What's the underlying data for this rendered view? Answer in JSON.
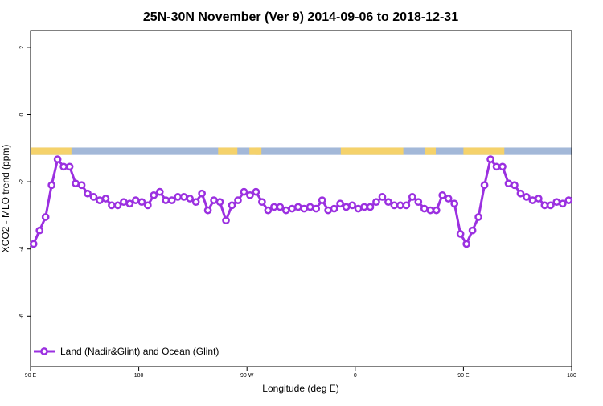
{
  "chart_data": {
    "type": "line",
    "title": "25N-30N November (Ver 9)   2014-09-06 to 2018-12-31",
    "xlabel": "Longitude (deg E)",
    "ylabel": "XCO2 - MLO trend (ppm)",
    "xlim": [
      90,
      540
    ],
    "ylim": [
      -7.5,
      2.5
    ],
    "x_ticks": [
      {
        "value": 90,
        "label": "90 E"
      },
      {
        "value": 180,
        "label": "180"
      },
      {
        "value": 270,
        "label": "90 W"
      },
      {
        "value": 360,
        "label": "0"
      },
      {
        "value": 450,
        "label": "90 E"
      },
      {
        "value": 540,
        "label": "180"
      }
    ],
    "y_ticks": [
      {
        "value": 2,
        "label": "2"
      },
      {
        "value": 0,
        "label": "0"
      },
      {
        "value": -2,
        "label": "-2"
      },
      {
        "value": -4,
        "label": "-4"
      },
      {
        "value": -6,
        "label": "-6"
      }
    ],
    "grid": false,
    "legend_position": "bottom-left",
    "land_ocean_band": {
      "y_range": [
        -1.2,
        -0.98
      ],
      "ocean_color": "#a3b8d8",
      "land_color": "#f5d26b",
      "land_segments": [
        [
          90,
          124
        ],
        [
          246,
          262
        ],
        [
          272,
          282
        ],
        [
          277,
          281
        ],
        [
          348,
          400
        ],
        [
          418,
          427
        ],
        [
          450,
          484
        ]
      ]
    },
    "series": [
      {
        "name": "Land (Nadir&Glint) and Ocean (Glint)",
        "color": "#9b30e0",
        "x": [
          92.5,
          97.5,
          102.5,
          107.5,
          112.5,
          117.5,
          122.5,
          127.5,
          132.5,
          137.5,
          142.5,
          147.5,
          152.5,
          157.5,
          162.5,
          167.5,
          172.5,
          177.5,
          182.5,
          187.5,
          192.5,
          197.5,
          202.5,
          207.5,
          212.5,
          217.5,
          222.5,
          227.5,
          232.5,
          237.5,
          242.5,
          247.5,
          252.5,
          257.5,
          262.5,
          267.5,
          272.5,
          277.5,
          282.5,
          287.5,
          292.5,
          297.5,
          302.5,
          307.5,
          312.5,
          317.5,
          322.5,
          327.5,
          332.5,
          337.5,
          342.5,
          347.5,
          352.5,
          357.5,
          362.5,
          367.5,
          372.5,
          377.5,
          382.5,
          387.5,
          392.5,
          397.5,
          402.5,
          407.5,
          412.5,
          417.5,
          422.5,
          427.5,
          432.5,
          437.5,
          442.5,
          447.5,
          452.5,
          457.5,
          462.5,
          467.5,
          472.5,
          477.5,
          482.5,
          487.5,
          492.5,
          497.5,
          502.5,
          507.5,
          512.5,
          517.5,
          522.5,
          527.5,
          532.5,
          537.5
        ],
        "y": [
          -3.85,
          -3.45,
          -3.05,
          -2.1,
          -1.33,
          -1.55,
          -1.55,
          -2.05,
          -2.1,
          -2.35,
          -2.45,
          -2.55,
          -2.5,
          -2.7,
          -2.7,
          -2.6,
          -2.65,
          -2.55,
          -2.6,
          -2.7,
          -2.4,
          -2.3,
          -2.55,
          -2.55,
          -2.45,
          -2.45,
          -2.5,
          -2.6,
          -2.35,
          -2.85,
          -2.55,
          -2.6,
          -3.15,
          -2.7,
          -2.55,
          -2.3,
          -2.4,
          -2.3,
          -2.6,
          -2.85,
          -2.75,
          -2.75,
          -2.85,
          -2.8,
          -2.75,
          -2.8,
          -2.75,
          -2.8,
          -2.55,
          -2.85,
          -2.8,
          -2.65,
          -2.75,
          -2.7,
          -2.8,
          -2.75,
          -2.75,
          -2.6,
          -2.45,
          -2.6,
          -2.7,
          -2.7,
          -2.7,
          -2.45,
          -2.6,
          -2.8,
          -2.85,
          -2.85,
          -2.4,
          -2.5,
          -2.65,
          -3.55,
          -3.85,
          -3.45,
          -3.05,
          -2.1,
          -1.33,
          -1.55,
          -1.55,
          -2.05,
          -2.1,
          -2.35,
          -2.45,
          -2.55,
          -2.5,
          -2.7,
          -2.7,
          -2.6,
          -2.65,
          -2.55
        ]
      }
    ]
  }
}
